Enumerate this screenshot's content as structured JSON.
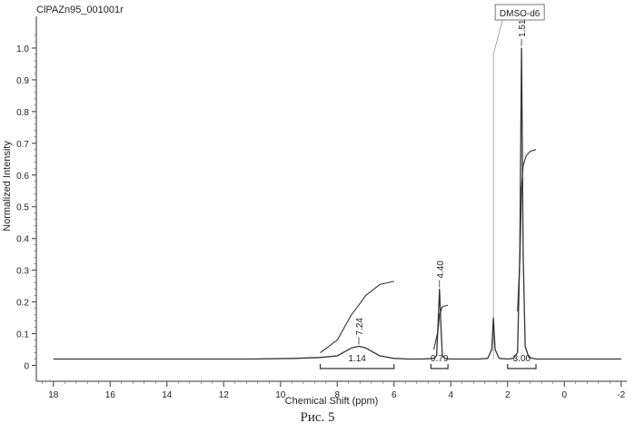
{
  "chart_data": {
    "type": "line",
    "title": "ClPAZn95_001001r",
    "xlabel": "Chemical Shift (ppm)",
    "ylabel": "Normalized Intensity",
    "xlim": [
      18.6,
      -2.2
    ],
    "x_reversed": true,
    "ylim": [
      -0.05,
      1.1
    ],
    "x_ticks": [
      "18",
      "16",
      "14",
      "12",
      "10",
      "8",
      "6",
      "4",
      "2",
      "0",
      "-2"
    ],
    "y_ticks": [
      "0",
      "0.1",
      "0.2",
      "0.3",
      "0.4",
      "0.5",
      "0.6",
      "0.7",
      "0.8",
      "0.9",
      "1.0"
    ],
    "grid": false,
    "series": [
      {
        "kind": "spectrum",
        "x": [
          18.0,
          17.0,
          15.0,
          13.0,
          11.0,
          9.5,
          8.6,
          8.0,
          7.7,
          7.5,
          7.24,
          7.0,
          6.8,
          6.5,
          6.0,
          5.5,
          5.0,
          4.6,
          4.5,
          4.45,
          4.4,
          4.35,
          4.3,
          4.2,
          4.0,
          3.5,
          3.0,
          2.7,
          2.56,
          2.5,
          2.44,
          2.3,
          2.0,
          1.8,
          1.65,
          1.57,
          1.51,
          1.45,
          1.38,
          1.25,
          1.0,
          0.5,
          0.0,
          -1.0,
          -2.0
        ],
        "y": [
          0.02,
          0.02,
          0.02,
          0.02,
          0.02,
          0.022,
          0.025,
          0.03,
          0.045,
          0.055,
          0.06,
          0.055,
          0.045,
          0.03,
          0.022,
          0.02,
          0.02,
          0.022,
          0.03,
          0.13,
          0.24,
          0.13,
          0.03,
          0.021,
          0.02,
          0.02,
          0.02,
          0.022,
          0.05,
          0.15,
          0.05,
          0.022,
          0.02,
          0.022,
          0.04,
          0.35,
          1.0,
          0.35,
          0.06,
          0.025,
          0.02,
          0.02,
          0.02,
          0.02,
          0.02
        ]
      },
      {
        "kind": "integral",
        "x": [
          8.6,
          8.0,
          7.5,
          7.24,
          7.0,
          6.5,
          6.0
        ],
        "y": [
          0.04,
          0.08,
          0.16,
          0.19,
          0.22,
          0.255,
          0.265
        ]
      },
      {
        "kind": "integral",
        "x": [
          4.6,
          4.45,
          4.4,
          4.3,
          4.1
        ],
        "y": [
          0.05,
          0.11,
          0.16,
          0.185,
          0.19
        ]
      },
      {
        "kind": "integral",
        "x": [
          1.65,
          1.56,
          1.51,
          1.45,
          1.35,
          1.2,
          1.0
        ],
        "y": [
          0.17,
          0.35,
          0.56,
          0.63,
          0.66,
          0.675,
          0.68
        ]
      }
    ],
    "peak_labels": [
      {
        "x": 7.24,
        "y": 0.06,
        "text": "7.24"
      },
      {
        "x": 4.4,
        "y": 0.24,
        "text": "4.40"
      },
      {
        "x": 1.51,
        "y": 1.0,
        "text": "1.51"
      }
    ],
    "integrals": [
      {
        "from": 8.6,
        "to": 6.0,
        "label": "1.14"
      },
      {
        "from": 4.7,
        "to": 4.1,
        "label": "0.79"
      },
      {
        "from": 2.0,
        "to": 1.0,
        "label": "3.00"
      }
    ],
    "solvent": {
      "x": 2.5,
      "label": "DMSO-d6"
    }
  },
  "caption": "Рис. 5"
}
